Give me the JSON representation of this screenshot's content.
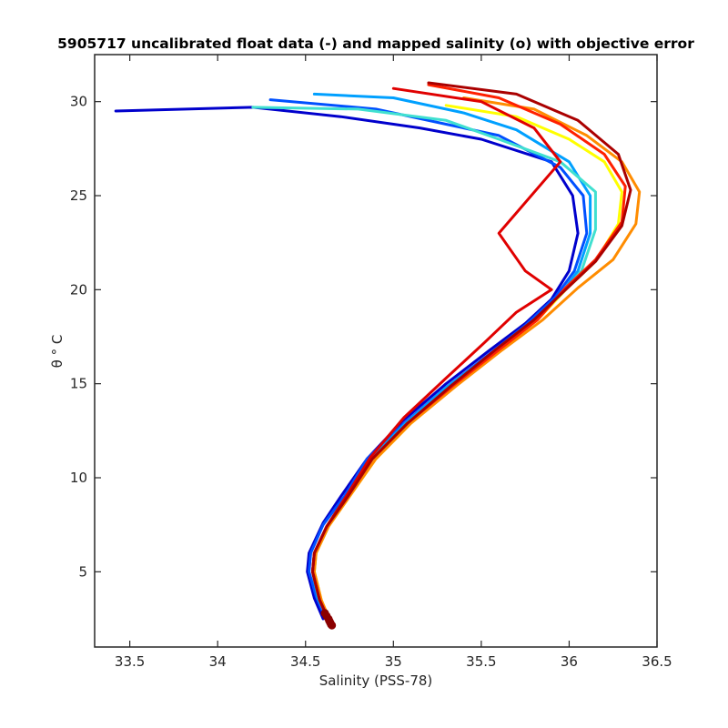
{
  "chart_data": {
    "type": "line",
    "title": "5905717 uncalibrated float data (-) and mapped salinity (o) with objective error",
    "xlabel": "Salinity (PSS-78)",
    "ylabel": "θ ° C",
    "xlim": [
      33.3,
      36.5
    ],
    "ylim": [
      1.0,
      32.5
    ],
    "x_ticks": [
      33.5,
      34,
      34.5,
      35,
      35.5,
      36,
      36.5
    ],
    "x_tick_labels": [
      "33.5",
      "34",
      "34.5",
      "35",
      "35.5",
      "36",
      "36.5"
    ],
    "y_ticks": [
      5,
      10,
      15,
      20,
      25,
      30
    ],
    "y_tick_labels": [
      "5",
      "10",
      "15",
      "20",
      "25",
      "30"
    ],
    "grid": false,
    "colormap": "jet (early cycles blue → late cycles dark red)",
    "series": [
      {
        "color": "#0000cc",
        "x": [
          33.42,
          34.2,
          34.7,
          35.15,
          35.5,
          35.9,
          36.02,
          36.05,
          36.0,
          35.9,
          35.75,
          35.55,
          35.3,
          35.05,
          34.85,
          34.7,
          34.6,
          34.52,
          34.51,
          34.55,
          34.6
        ],
        "y": [
          29.5,
          29.7,
          29.2,
          28.6,
          28.0,
          26.8,
          25.0,
          23.0,
          21.0,
          19.5,
          18.2,
          16.8,
          15.0,
          13.0,
          11.0,
          9.0,
          7.6,
          6.0,
          5.0,
          3.6,
          2.5
        ]
      },
      {
        "color": "#0050ff",
        "x": [
          34.3,
          34.9,
          35.3,
          35.6,
          35.95,
          36.08,
          36.1,
          36.03,
          35.92,
          35.75,
          35.55,
          35.3,
          35.05,
          34.85,
          34.72,
          34.6,
          34.53,
          34.52,
          34.56,
          34.61
        ],
        "y": [
          30.1,
          29.6,
          28.8,
          28.2,
          26.5,
          25.0,
          23.0,
          21.0,
          19.6,
          18.1,
          16.6,
          14.8,
          12.8,
          11.0,
          9.0,
          7.5,
          6.0,
          5.0,
          3.7,
          2.6
        ]
      },
      {
        "color": "#00a0ff",
        "x": [
          34.55,
          35.0,
          35.4,
          35.7,
          36.0,
          36.12,
          36.12,
          36.05,
          35.94,
          35.77,
          35.56,
          35.3,
          35.07,
          34.87,
          34.73,
          34.62,
          34.55,
          34.54,
          34.57,
          34.62
        ],
        "y": [
          30.4,
          30.2,
          29.4,
          28.5,
          26.8,
          25.0,
          23.0,
          21.0,
          19.6,
          18.1,
          16.6,
          14.8,
          12.9,
          11.0,
          9.0,
          7.4,
          6.0,
          5.0,
          3.6,
          2.6
        ]
      },
      {
        "color": "#40e0d0",
        "x": [
          34.2,
          34.8,
          35.3,
          35.6,
          35.95,
          36.15,
          36.15,
          36.07,
          35.95,
          35.78,
          35.57,
          35.32,
          35.08,
          34.88,
          34.74,
          34.63,
          34.56,
          34.55,
          34.58,
          34.63
        ],
        "y": [
          29.7,
          29.6,
          29.0,
          28.0,
          26.8,
          25.2,
          23.2,
          21.0,
          19.7,
          18.1,
          16.6,
          14.8,
          12.9,
          11.0,
          9.0,
          7.4,
          6.0,
          5.0,
          3.5,
          2.6
        ]
      },
      {
        "color": "#ffff00",
        "x": [
          35.3,
          35.7,
          36.0,
          36.2,
          36.3,
          36.28,
          36.15,
          35.98,
          35.82,
          35.6,
          35.35,
          35.1,
          34.9,
          34.75,
          34.63,
          34.56,
          34.55,
          34.59,
          34.63
        ],
        "y": [
          29.8,
          29.2,
          28.0,
          26.8,
          25.2,
          23.5,
          21.5,
          20.0,
          18.4,
          16.8,
          14.9,
          12.9,
          11.0,
          9.0,
          7.4,
          6.0,
          5.0,
          3.5,
          2.5
        ]
      },
      {
        "color": "#ff8c00",
        "x": [
          35.4,
          35.8,
          36.1,
          36.3,
          36.4,
          36.38,
          36.25,
          36.05,
          35.85,
          35.62,
          35.36,
          35.1,
          34.9,
          34.75,
          34.63,
          34.56,
          34.55,
          34.59,
          34.64
        ],
        "y": [
          30.2,
          29.6,
          28.2,
          26.8,
          25.2,
          23.5,
          21.6,
          20.1,
          18.4,
          16.8,
          14.9,
          12.9,
          11.0,
          9.0,
          7.4,
          6.0,
          5.0,
          3.5,
          2.4
        ]
      },
      {
        "color": "#ff2000",
        "x": [
          35.2,
          35.6,
          35.95,
          36.2,
          36.32,
          36.3,
          36.15,
          35.98,
          35.82,
          35.6,
          35.34,
          35.08,
          34.88,
          34.74,
          34.62,
          34.55,
          34.54,
          34.58,
          34.63
        ],
        "y": [
          30.9,
          30.2,
          28.8,
          27.2,
          25.5,
          23.6,
          21.6,
          20.1,
          18.4,
          16.8,
          14.9,
          12.9,
          11.0,
          9.0,
          7.4,
          6.0,
          5.0,
          3.5,
          2.4
        ]
      },
      {
        "color": "#e00000",
        "x": [
          35.0,
          35.5,
          35.8,
          35.95,
          35.6,
          35.75,
          35.9,
          35.7,
          35.52,
          35.3,
          35.06,
          34.87,
          34.73,
          34.62,
          34.55,
          34.54,
          34.58,
          34.63
        ],
        "y": [
          30.7,
          30.0,
          28.6,
          26.8,
          23.0,
          21.0,
          20.0,
          18.8,
          17.2,
          15.3,
          13.2,
          11.1,
          9.0,
          7.4,
          6.0,
          5.0,
          3.5,
          2.4
        ]
      },
      {
        "color": "#aa0000",
        "x": [
          35.2,
          35.7,
          36.05,
          36.28,
          36.35,
          36.3,
          36.15,
          35.98,
          35.8,
          35.58,
          35.33,
          35.08,
          34.88,
          34.74,
          34.62,
          34.55,
          34.54,
          34.58,
          34.64
        ],
        "y": [
          31.0,
          30.4,
          29.0,
          27.2,
          25.3,
          23.4,
          21.5,
          20.0,
          18.4,
          16.8,
          14.9,
          12.9,
          11.0,
          9.0,
          7.4,
          6.0,
          5.0,
          3.5,
          2.3
        ]
      }
    ],
    "markers": {
      "color": "#8b0000",
      "x": [
        34.61,
        34.62,
        34.63,
        34.635,
        34.64,
        34.645,
        34.65
      ],
      "y": [
        2.8,
        2.65,
        2.5,
        2.4,
        2.3,
        2.2,
        2.15
      ]
    }
  }
}
